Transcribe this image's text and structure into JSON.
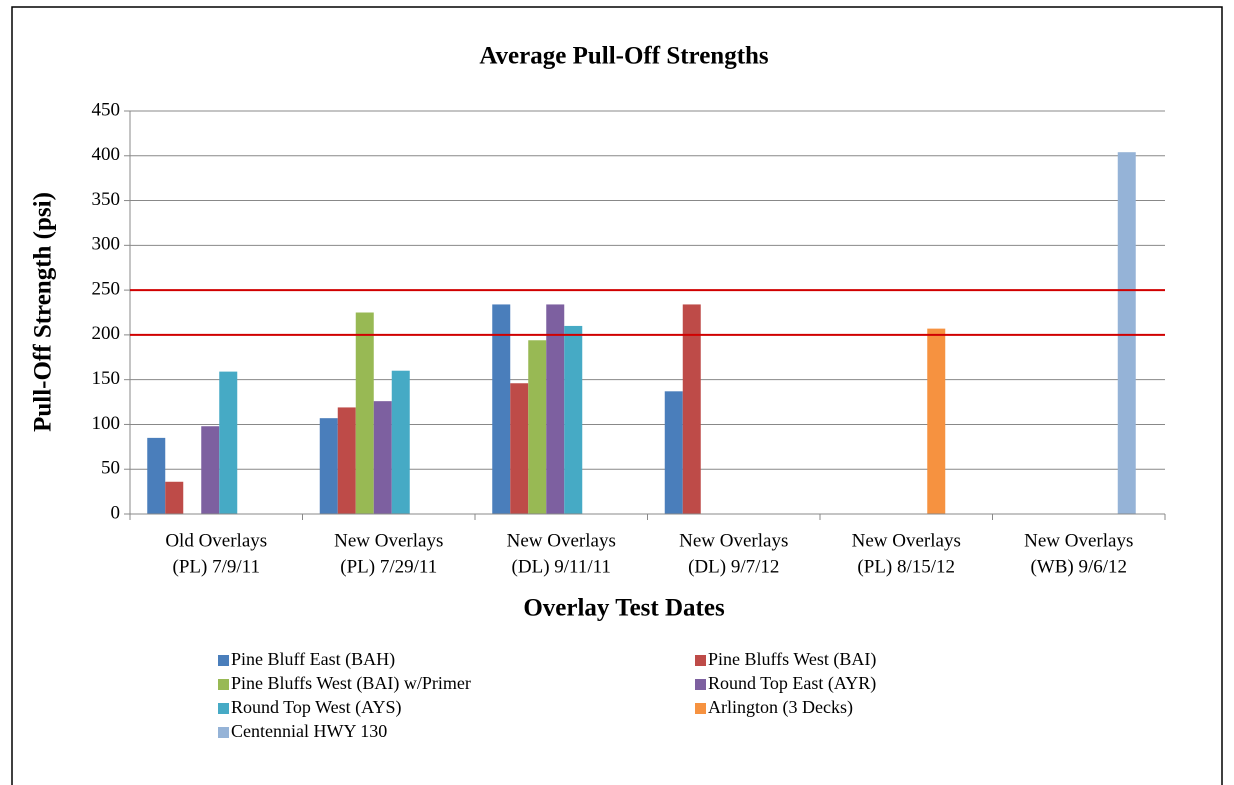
{
  "chart_data": {
    "type": "bar",
    "title": "Average Pull-Off Strengths",
    "x_label": "Overlay Test Dates",
    "y_label": "Pull-Off Strength (psi)",
    "categories": [
      [
        "Old Overlays",
        "(PL) 7/9/11"
      ],
      [
        "New Overlays",
        "(PL) 7/29/11"
      ],
      [
        "New Overlays",
        "(DL) 9/11/11"
      ],
      [
        "New Overlays",
        "(DL) 9/7/12"
      ],
      [
        "New Overlays",
        "(PL) 8/15/12"
      ],
      [
        "New Overlays",
        "(WB) 9/6/12"
      ]
    ],
    "series": [
      {
        "name": "Pine Bluff East (BAH)",
        "color": "#4a7ebb",
        "values": [
          85,
          107,
          234,
          137,
          null,
          null
        ]
      },
      {
        "name": "Pine Bluffs West (BAI)",
        "color": "#be4b48",
        "values": [
          36,
          119,
          146,
          234,
          null,
          null
        ]
      },
      {
        "name": "Pine Bluffs West (BAI) w/Primer",
        "color": "#98b954",
        "values": [
          null,
          225,
          194,
          null,
          null,
          null
        ]
      },
      {
        "name": "Round Top East (AYR)",
        "color": "#7d60a0",
        "values": [
          98,
          126,
          234,
          null,
          null,
          null
        ]
      },
      {
        "name": "Round Top West (AYS)",
        "color": "#46aac5",
        "values": [
          159,
          160,
          210,
          null,
          null,
          null
        ]
      },
      {
        "name": "Arlington (3 Decks)",
        "color": "#f69240",
        "values": [
          null,
          null,
          null,
          null,
          207,
          null
        ]
      },
      {
        "name": "Centennial HWY 130",
        "color": "#95b3d7",
        "values": [
          null,
          null,
          null,
          null,
          null,
          404
        ]
      }
    ],
    "ylim": [
      0,
      450
    ],
    "yticks": [
      0,
      50,
      100,
      150,
      200,
      250,
      300,
      350,
      400,
      450
    ],
    "grid": true,
    "reference_lines": [
      {
        "value": 200,
        "color": "#d00000"
      },
      {
        "value": 250,
        "color": "#d00000"
      }
    ],
    "legend": "bottom"
  }
}
